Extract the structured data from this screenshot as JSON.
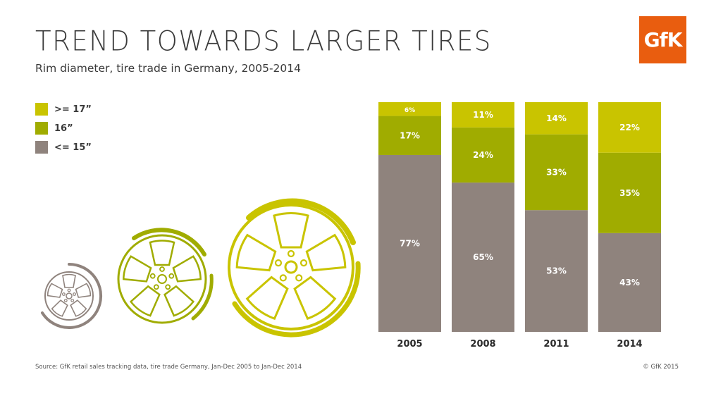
{
  "header": {
    "title": "TREND TOWARDS LARGER TIRES",
    "subtitle": "Rim diameter, tire trade in Germany, 2005-2014",
    "logo": "GfK"
  },
  "footer": {
    "source": "Source: GfK retail sales tracking data, tire trade Germany, Jan-Dec 2005 to Jan-Dec 2014",
    "copyright": "© GfK 2015"
  },
  "colors": {
    "large": "#c9c400",
    "medium": "#a0ac00",
    "small": "#8f837d",
    "logo": "#e95d0f"
  },
  "chart_data": {
    "type": "bar",
    "stacked": true,
    "categories": [
      "2005",
      "2008",
      "2011",
      "2014"
    ],
    "series": [
      {
        "name": "<= 15”",
        "values": [
          77,
          65,
          53,
          43
        ],
        "labels": [
          "77%",
          "65%",
          "53%",
          "43%"
        ]
      },
      {
        "name": "16”",
        "values": [
          17,
          24,
          33,
          35
        ],
        "labels": [
          "17%",
          "24%",
          "33%",
          "35%"
        ]
      },
      {
        "name": ">= 17”",
        "values": [
          6,
          11,
          14,
          22
        ],
        "labels": [
          "6%",
          "11%",
          "14%",
          "22%"
        ]
      }
    ],
    "ylim": [
      0,
      100
    ],
    "legend": [
      {
        "label": ">= 17”",
        "color": "#c9c400"
      },
      {
        "label": "16”",
        "color": "#a0ac00"
      },
      {
        "label": "<= 15”",
        "color": "#8f837d"
      }
    ]
  }
}
